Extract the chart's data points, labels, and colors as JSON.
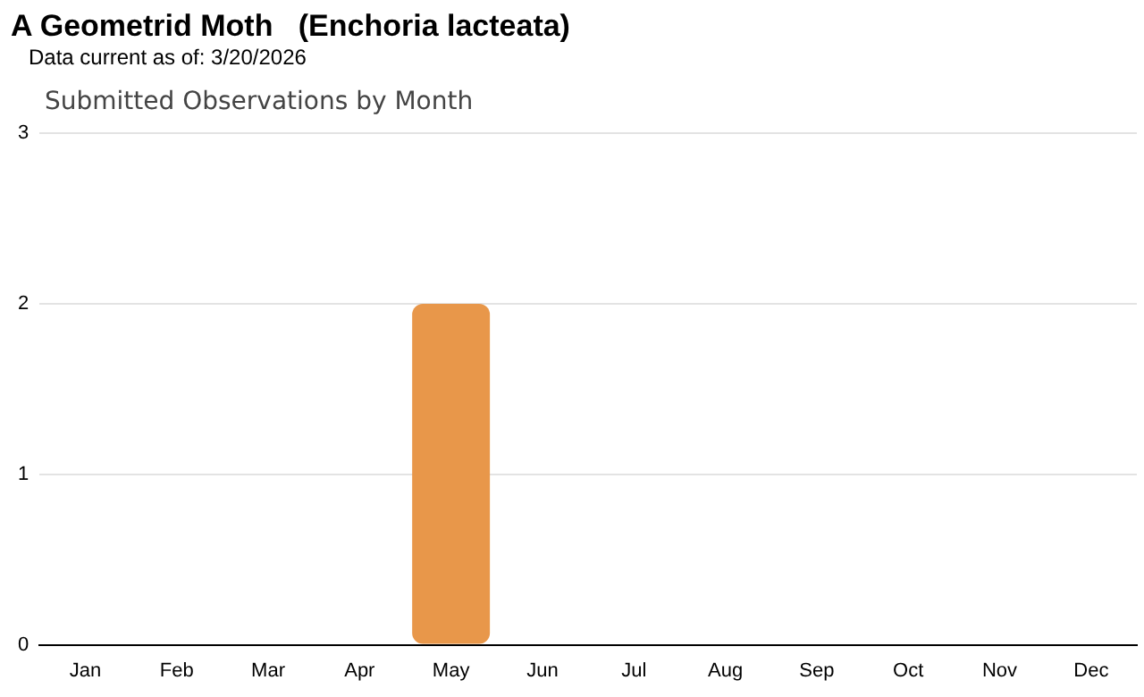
{
  "chart_data": {
    "type": "bar",
    "title": "A Geometrid Moth   (Enchoria lacteata)",
    "subtitle": "Data current as of: 3/20/2026",
    "annotations": [
      "Submitted Observations by Month"
    ],
    "categories": [
      "Jan",
      "Feb",
      "Mar",
      "Apr",
      "May",
      "Jun",
      "Jul",
      "Aug",
      "Sep",
      "Oct",
      "Nov",
      "Dec"
    ],
    "values": [
      0,
      0,
      0,
      0,
      2,
      0,
      0,
      0,
      0,
      0,
      0,
      0
    ],
    "color": "#e8974a",
    "ylim": [
      0,
      3
    ],
    "yticks": [
      0,
      1,
      2,
      3
    ],
    "grid": "y",
    "legend": false
  }
}
